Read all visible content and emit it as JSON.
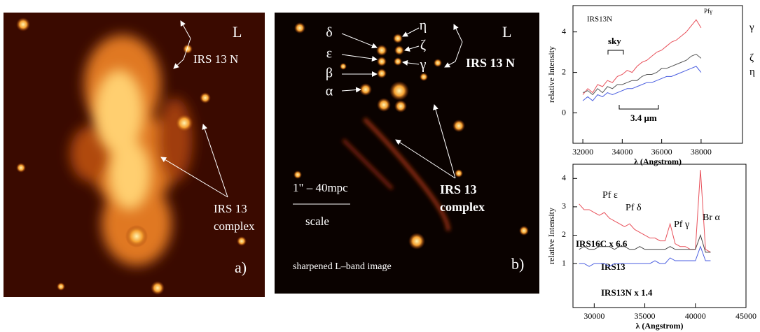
{
  "panel_a": {
    "band": "L",
    "source_label": "IRS 13 N",
    "complex_label": [
      "IRS 13",
      "complex"
    ],
    "letter": "a)"
  },
  "panel_b": {
    "band": "L",
    "source_label": "IRS 13 N",
    "components": [
      "δ",
      "ε",
      "β",
      "α",
      "η",
      "ζ",
      "γ"
    ],
    "complex_label": [
      "IRS 13",
      "complex"
    ],
    "scale_text": "1\" – 40mpc",
    "scale_word": "scale",
    "caption": "sharpened L–band image",
    "letter": "b)"
  },
  "chart_data": [
    {
      "type": "line",
      "x_label": "λ (Angstrom)",
      "y_label": "relative Intensity",
      "annotations": [
        "IRS13N",
        "sky",
        "3.4  μm",
        "Pfγ"
      ],
      "x": [
        32000,
        32250,
        32500,
        32750,
        33000,
        33250,
        33500,
        33750,
        34000,
        34250,
        34500,
        34750,
        35000,
        35250,
        35500,
        35750,
        36000,
        36250,
        36500,
        36750,
        37000,
        37250,
        37500,
        37750,
        38000
      ],
      "series": [
        {
          "name": "γ",
          "color": "#e8505a",
          "values": [
            0.9,
            1.2,
            1.0,
            1.4,
            1.3,
            1.6,
            1.5,
            1.8,
            1.9,
            2.1,
            2.0,
            2.3,
            2.5,
            2.6,
            2.8,
            3.0,
            3.1,
            3.3,
            3.5,
            3.6,
            3.8,
            4.0,
            4.3,
            4.6,
            4.2
          ]
        },
        {
          "name": "ζ",
          "color": "#555555",
          "values": [
            1.0,
            1.1,
            0.9,
            1.2,
            1.0,
            1.3,
            1.2,
            1.4,
            1.4,
            1.5,
            1.6,
            1.6,
            1.8,
            1.9,
            1.9,
            2.0,
            2.2,
            2.2,
            2.3,
            2.4,
            2.5,
            2.6,
            2.8,
            2.9,
            2.7
          ]
        },
        {
          "name": "η",
          "color": "#4a5ee0",
          "values": [
            0.6,
            0.8,
            0.6,
            0.9,
            0.8,
            1.0,
            0.9,
            1.0,
            1.1,
            1.2,
            1.2,
            1.3,
            1.4,
            1.5,
            1.5,
            1.6,
            1.7,
            1.8,
            1.8,
            1.9,
            2.0,
            2.1,
            2.2,
            2.3,
            2.0
          ]
        }
      ],
      "xlim": [
        31500,
        40100
      ],
      "ylim": [
        -1.5,
        5.3
      ],
      "xticks": [
        32000,
        34000,
        36000,
        38000
      ],
      "yticks": [
        0,
        2,
        4
      ]
    },
    {
      "type": "line",
      "x_label": "λ (Angstrom)",
      "y_label": "relative Intensity",
      "annotations": [
        "Pf ε",
        "Pf δ",
        "Pf γ",
        "Br α"
      ],
      "x": [
        28500,
        29000,
        29500,
        30000,
        30500,
        31000,
        31500,
        32000,
        32500,
        33000,
        33500,
        34000,
        34500,
        35000,
        35500,
        36000,
        36500,
        37000,
        37500,
        38000,
        38500,
        39000,
        39500,
        40000,
        40500,
        41000,
        41500
      ],
      "series": [
        {
          "name": "IRS16C x 6.6",
          "color": "#e8505a",
          "values": [
            3.1,
            2.9,
            2.9,
            2.8,
            2.7,
            2.8,
            2.6,
            2.5,
            2.4,
            2.3,
            2.4,
            2.2,
            2.1,
            2.0,
            1.9,
            1.9,
            1.8,
            1.8,
            2.4,
            1.7,
            1.6,
            1.6,
            1.5,
            1.5,
            4.3,
            1.5,
            1.4
          ]
        },
        {
          "name": "IRS13",
          "color": "#444444",
          "values": [
            1.5,
            1.6,
            1.5,
            1.5,
            1.6,
            1.6,
            1.6,
            1.5,
            1.6,
            1.6,
            1.5,
            1.5,
            1.6,
            1.5,
            1.5,
            1.5,
            1.5,
            1.5,
            1.6,
            1.5,
            1.5,
            1.5,
            1.5,
            1.5,
            2.0,
            1.4,
            1.4
          ]
        },
        {
          "name": "IRS13N x 1.4",
          "color": "#4a5ee0",
          "values": [
            1.0,
            1.0,
            0.9,
            1.0,
            1.0,
            1.0,
            0.9,
            1.0,
            1.0,
            1.0,
            1.0,
            1.0,
            1.0,
            1.0,
            1.0,
            1.1,
            1.0,
            1.0,
            1.2,
            1.1,
            1.1,
            1.1,
            1.1,
            1.1,
            1.6,
            1.1,
            1.1
          ]
        }
      ],
      "xlim": [
        27900,
        45000
      ],
      "ylim": [
        -0.55,
        4.5
      ],
      "xticks": [
        30000,
        35000,
        40000,
        45000
      ],
      "yticks": [
        1,
        2,
        3,
        4
      ]
    }
  ]
}
